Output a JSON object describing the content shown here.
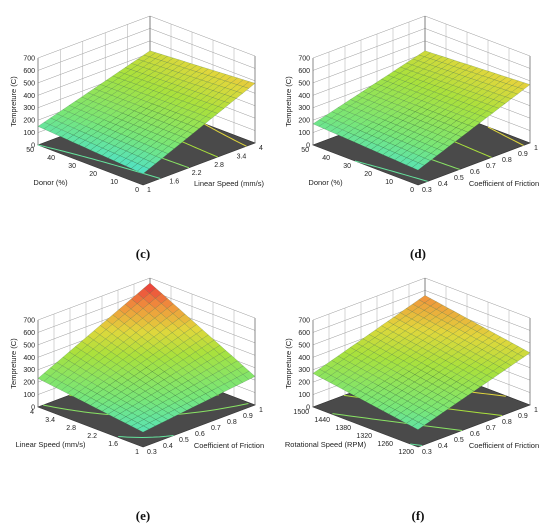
{
  "chart_data": [
    {
      "type": "surface",
      "caption": "(c)",
      "zlabel": "Tempreture (C)",
      "xlabel": "Donor (%)",
      "ylabel": "Linear Speed (mm/s)",
      "zlim": [
        0,
        700
      ],
      "zticks": [
        "0",
        "100",
        "200",
        "300",
        "400",
        "500",
        "600",
        "700"
      ],
      "xlim": [
        0,
        50
      ],
      "xticks": [
        "0",
        "10",
        "20",
        "30",
        "40",
        "50"
      ],
      "ylim": [
        1,
        4
      ],
      "yticks": [
        "1",
        "1.6",
        "2.2",
        "2.8",
        "3.4",
        "4"
      ],
      "surface_corners": {
        "x0y0": 90,
        "x1y0": 150,
        "x0y1": 480,
        "x1y1": 420
      }
    },
    {
      "type": "surface",
      "caption": "(d)",
      "zlabel": "Tempreture (C)",
      "xlabel": "Donor (%)",
      "ylabel": "Coefficient of Friction",
      "zlim": [
        0,
        700
      ],
      "zticks": [
        "0",
        "100",
        "200",
        "300",
        "400",
        "500",
        "600",
        "700"
      ],
      "xlim": [
        0,
        50
      ],
      "xticks": [
        "0",
        "10",
        "20",
        "30",
        "40",
        "50"
      ],
      "ylim": [
        0.3,
        1
      ],
      "yticks": [
        "0.3",
        "0.4",
        "0.5",
        "0.6",
        "0.7",
        "0.8",
        "0.9",
        "1"
      ],
      "surface_corners": {
        "x0y0": 120,
        "x1y0": 170,
        "x0y1": 470,
        "x1y1": 420
      }
    },
    {
      "type": "surface",
      "caption": "(e)",
      "zlabel": "Tempreture (C)",
      "xlabel": "Linear Speed (mm/s)",
      "ylabel": "Coefficient of Friction",
      "zlim": [
        0,
        700
      ],
      "zticks": [
        "0",
        "100",
        "200",
        "300",
        "400",
        "500",
        "600",
        "700"
      ],
      "xlim": [
        1,
        4
      ],
      "xticks": [
        "1",
        "1.6",
        "2.2",
        "2.8",
        "3.4",
        "4"
      ],
      "ylim": [
        0.3,
        1
      ],
      "yticks": [
        "0.3",
        "0.4",
        "0.5",
        "0.6",
        "0.7",
        "0.8",
        "0.9",
        "1"
      ],
      "surface_corners": {
        "x0y0": 120,
        "x1y0": 230,
        "x0y1": 230,
        "x1y1": 660
      }
    },
    {
      "type": "surface",
      "caption": "(f)",
      "zlabel": "Tempreture (C)",
      "xlabel": "Rotational Speed (RPM)",
      "ylabel": "Coefficient of Friction",
      "zlim": [
        0,
        700
      ],
      "zticks": [
        "0",
        "100",
        "200",
        "300",
        "400",
        "500",
        "600",
        "700"
      ],
      "xlim": [
        1200,
        1500
      ],
      "xticks": [
        "1200",
        "1260",
        "1320",
        "1380",
        "1440",
        "1500"
      ],
      "ylim": [
        0.3,
        1
      ],
      "yticks": [
        "0.3",
        "0.4",
        "0.5",
        "0.6",
        "0.7",
        "0.8",
        "0.9",
        "1"
      ],
      "surface_corners": {
        "x0y0": 140,
        "x1y0": 270,
        "x0y1": 420,
        "x1y1": 560
      }
    }
  ]
}
